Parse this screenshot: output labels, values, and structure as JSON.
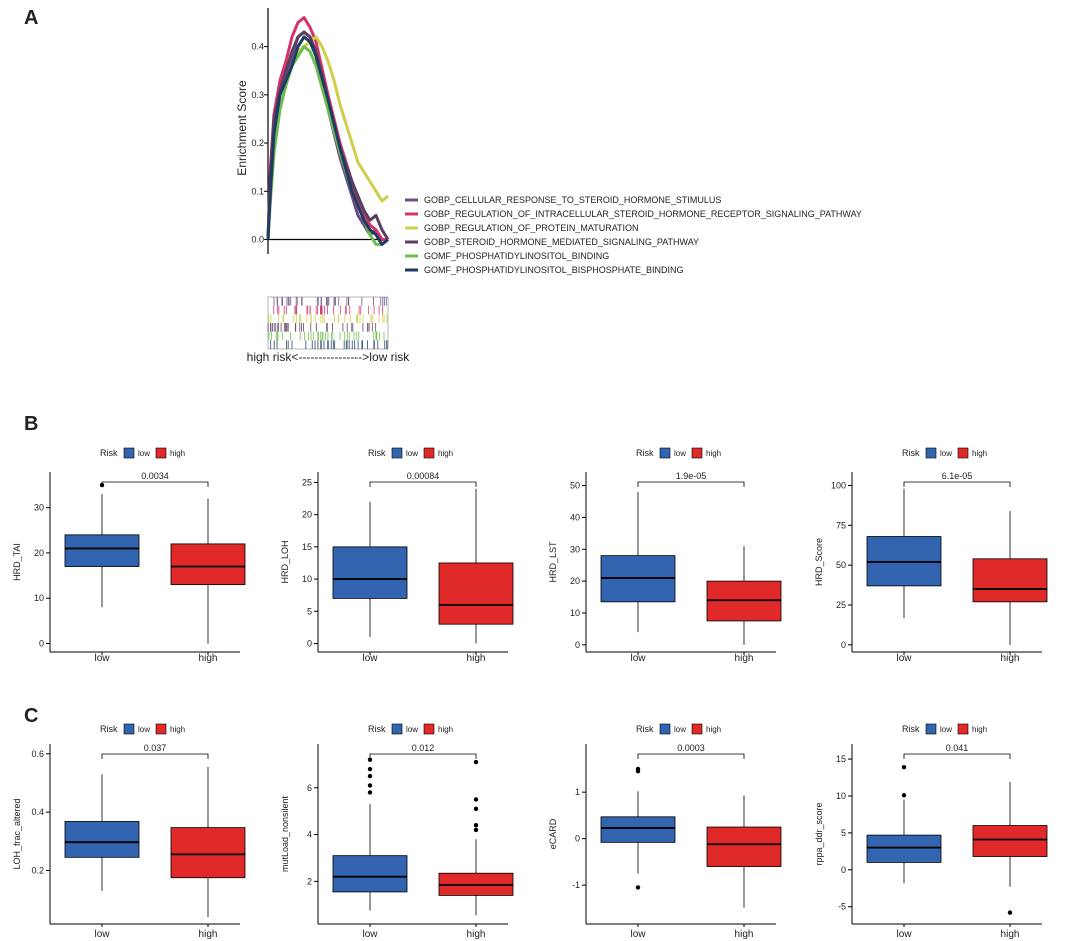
{
  "panels": {
    "a": "A",
    "b": "B",
    "c": "C"
  },
  "colors": {
    "low": "#3264b0",
    "high": "#e02a2a",
    "gsea": [
      "#6b4a86",
      "#d6336c",
      "#cfcf4a",
      "#5a3e5f",
      "#6cbf4c",
      "#1f3b64"
    ]
  },
  "chart_data": [
    {
      "type": "line",
      "title": "",
      "ylabel": "Enrichment Score",
      "yticks": [
        "0.0",
        "0.1",
        "0.2",
        "0.3",
        "0.4"
      ],
      "ylim": [
        -0.03,
        0.48
      ],
      "xlim": [
        0,
        1
      ],
      "axis_note": "high risk<---------------->low risk",
      "series": [
        {
          "name": "GOBP_CELLULAR_RESPONSE_TO_STEROID_HORMONE_STIMULUS",
          "x": [
            0,
            0.02,
            0.05,
            0.1,
            0.15,
            0.2,
            0.25,
            0.3,
            0.35,
            0.4,
            0.5,
            0.6,
            0.7,
            0.75,
            0.8,
            0.85,
            0.9,
            0.95,
            1.0
          ],
          "y": [
            0,
            0.12,
            0.24,
            0.3,
            0.34,
            0.38,
            0.42,
            0.43,
            0.42,
            0.38,
            0.27,
            0.17,
            0.09,
            0.05,
            0.03,
            0.01,
            0.02,
            0.0,
            0.0
          ]
        },
        {
          "name": "GOBP_REGULATION_OF_INTRACELLULAR_STEROID_HORMONE_RECEPTOR_SIGNALING_PATHWAY",
          "x": [
            0,
            0.02,
            0.05,
            0.1,
            0.15,
            0.2,
            0.25,
            0.3,
            0.35,
            0.4,
            0.5,
            0.6,
            0.7,
            0.75,
            0.8,
            0.85,
            0.9,
            0.95,
            1.0
          ],
          "y": [
            0,
            0.15,
            0.26,
            0.33,
            0.37,
            0.42,
            0.45,
            0.46,
            0.44,
            0.41,
            0.3,
            0.2,
            0.12,
            0.08,
            0.05,
            0.03,
            0.02,
            0.0,
            0.0
          ]
        },
        {
          "name": "GOBP_REGULATION_OF_PROTEIN_MATURATION",
          "x": [
            0,
            0.02,
            0.05,
            0.1,
            0.15,
            0.2,
            0.25,
            0.3,
            0.35,
            0.4,
            0.45,
            0.5,
            0.55,
            0.6,
            0.65,
            0.7,
            0.75,
            0.8,
            0.85,
            0.9,
            0.95,
            1.0
          ],
          "y": [
            0,
            0.12,
            0.22,
            0.3,
            0.33,
            0.36,
            0.39,
            0.4,
            0.41,
            0.42,
            0.4,
            0.37,
            0.33,
            0.28,
            0.24,
            0.2,
            0.16,
            0.14,
            0.12,
            0.1,
            0.08,
            0.09
          ]
        },
        {
          "name": "GOBP_STEROID_HORMONE_MEDIATED_SIGNALING_PATHWAY",
          "x": [
            0,
            0.02,
            0.05,
            0.1,
            0.15,
            0.2,
            0.25,
            0.3,
            0.35,
            0.4,
            0.5,
            0.6,
            0.7,
            0.75,
            0.8,
            0.85,
            0.9,
            0.95,
            1.0
          ],
          "y": [
            0,
            0.13,
            0.25,
            0.31,
            0.35,
            0.39,
            0.42,
            0.43,
            0.42,
            0.39,
            0.29,
            0.19,
            0.12,
            0.09,
            0.06,
            0.04,
            0.05,
            0.02,
            0.0
          ]
        },
        {
          "name": "GOMF_PHOSPHATIDYLINOSITOL_BINDING",
          "x": [
            0,
            0.02,
            0.05,
            0.1,
            0.15,
            0.2,
            0.25,
            0.3,
            0.35,
            0.4,
            0.5,
            0.6,
            0.7,
            0.75,
            0.8,
            0.85,
            0.9,
            0.95,
            1.0
          ],
          "y": [
            0,
            0.08,
            0.18,
            0.27,
            0.32,
            0.36,
            0.38,
            0.4,
            0.39,
            0.36,
            0.27,
            0.18,
            0.1,
            0.07,
            0.04,
            0.01,
            -0.01,
            -0.01,
            0.0
          ]
        },
        {
          "name": "GOMF_PHOSPHATIDYLINOSITOL_BISPHOSPHATE_BINDING",
          "x": [
            0,
            0.02,
            0.05,
            0.1,
            0.15,
            0.2,
            0.25,
            0.3,
            0.35,
            0.4,
            0.5,
            0.6,
            0.7,
            0.75,
            0.8,
            0.85,
            0.9,
            0.95,
            1.0
          ],
          "y": [
            0,
            0.1,
            0.22,
            0.3,
            0.33,
            0.36,
            0.4,
            0.42,
            0.41,
            0.38,
            0.29,
            0.19,
            0.1,
            0.07,
            0.04,
            0.02,
            0.01,
            -0.01,
            0.0
          ]
        }
      ]
    },
    {
      "type": "box",
      "panel": "B",
      "ylabel": "HRD_TAI",
      "ylim": [
        -1,
        37
      ],
      "yticks": [
        0,
        10,
        20,
        30
      ],
      "pvalue": "0.0034",
      "categories": [
        "low",
        "high"
      ],
      "boxes": [
        {
          "group": "low",
          "min": 8,
          "q1": 17,
          "median": 21,
          "q3": 24,
          "max": 33,
          "outliers": [
            35
          ]
        },
        {
          "group": "high",
          "min": 0,
          "q1": 13,
          "median": 17,
          "q3": 22,
          "max": 32,
          "outliers": []
        }
      ]
    },
    {
      "type": "box",
      "panel": "B",
      "ylabel": "HRD_LOH",
      "ylim": [
        -0.7,
        26
      ],
      "yticks": [
        0,
        5,
        10,
        15,
        20,
        25
      ],
      "pvalue": "0.00084",
      "categories": [
        "low",
        "high"
      ],
      "boxes": [
        {
          "group": "low",
          "min": 1,
          "q1": 7,
          "median": 10,
          "q3": 15,
          "max": 22,
          "outliers": []
        },
        {
          "group": "high",
          "min": 0,
          "q1": 3,
          "median": 6,
          "q3": 12.5,
          "max": 24,
          "outliers": []
        }
      ]
    },
    {
      "type": "box",
      "panel": "B",
      "ylabel": "HRD_LST",
      "ylim": [
        -1,
        53
      ],
      "yticks": [
        0,
        10,
        20,
        30,
        40,
        50
      ],
      "pvalue": "1.9e-05",
      "categories": [
        "low",
        "high"
      ],
      "boxes": [
        {
          "group": "low",
          "min": 4,
          "q1": 13.5,
          "median": 21,
          "q3": 28,
          "max": 48,
          "outliers": []
        },
        {
          "group": "high",
          "min": 0,
          "q1": 7.5,
          "median": 14,
          "q3": 20,
          "max": 31,
          "outliers": []
        }
      ]
    },
    {
      "type": "box",
      "panel": "B",
      "ylabel": "HRD_Score",
      "ylim": [
        -2,
        106
      ],
      "yticks": [
        0,
        25,
        50,
        75,
        100
      ],
      "pvalue": "6.1e-05",
      "categories": [
        "low",
        "high"
      ],
      "boxes": [
        {
          "group": "low",
          "min": 17,
          "q1": 37,
          "median": 52,
          "q3": 68,
          "max": 98,
          "outliers": []
        },
        {
          "group": "high",
          "min": 0,
          "q1": 27,
          "median": 35,
          "q3": 54,
          "max": 84,
          "outliers": []
        }
      ]
    },
    {
      "type": "box",
      "panel": "C",
      "ylabel": "LOH_frac_altered",
      "ylim": [
        0.03,
        0.62
      ],
      "yticks": [
        0.2,
        0.4,
        0.6
      ],
      "pvalue": "0.037",
      "categories": [
        "low",
        "high"
      ],
      "boxes": [
        {
          "group": "low",
          "min": 0.13,
          "q1": 0.245,
          "median": 0.297,
          "q3": 0.368,
          "max": 0.53,
          "outliers": []
        },
        {
          "group": "high",
          "min": 0.04,
          "q1": 0.175,
          "median": 0.255,
          "q3": 0.347,
          "max": 0.555,
          "outliers": []
        }
      ]
    },
    {
      "type": "box",
      "panel": "C",
      "ylabel": "mutLoad_nonsilent",
      "ylim": [
        0.35,
        7.7
      ],
      "yticks": [
        2,
        4,
        6
      ],
      "pvalue": "0.012",
      "categories": [
        "low",
        "high"
      ],
      "boxes": [
        {
          "group": "low",
          "min": 0.75,
          "q1": 1.55,
          "median": 2.2,
          "q3": 3.1,
          "max": 5.3,
          "outliers": [
            5.8,
            6.1,
            6.5,
            6.8,
            7.2
          ]
        },
        {
          "group": "high",
          "min": 0.55,
          "q1": 1.4,
          "median": 1.85,
          "q3": 2.35,
          "max": 3.8,
          "outliers": [
            4.2,
            4.4,
            5.1,
            5.5,
            7.1
          ]
        }
      ]
    },
    {
      "type": "box",
      "panel": "C",
      "ylabel": "eCARD",
      "ylim": [
        -1.75,
        1.95
      ],
      "yticks": [
        -1,
        0,
        1
      ],
      "pvalue": "0.0003",
      "categories": [
        "low",
        "high"
      ],
      "boxes": [
        {
          "group": "low",
          "min": -0.75,
          "q1": -0.08,
          "median": 0.23,
          "q3": 0.47,
          "max": 1.02,
          "outliers": [
            1.45,
            1.5,
            -1.05
          ]
        },
        {
          "group": "high",
          "min": -1.48,
          "q1": -0.6,
          "median": -0.12,
          "q3": 0.25,
          "max": 0.93,
          "outliers": []
        }
      ]
    },
    {
      "type": "box",
      "panel": "C",
      "ylabel": "rppa_ddr_score",
      "ylim": [
        -6.8,
        16.5
      ],
      "yticks": [
        -5,
        0,
        5,
        10,
        15
      ],
      "pvalue": "0.041",
      "categories": [
        "low",
        "high"
      ],
      "boxes": [
        {
          "group": "low",
          "min": -1.8,
          "q1": 1.0,
          "median": 3.0,
          "q3": 4.7,
          "max": 9.5,
          "outliers": [
            10.1,
            13.9
          ]
        },
        {
          "group": "high",
          "min": -2.3,
          "q1": 1.8,
          "median": 4.1,
          "q3": 6.0,
          "max": 11.9,
          "outliers": [
            -5.8
          ]
        }
      ]
    }
  ],
  "legend": {
    "title": "Risk",
    "low": "low",
    "high": "high"
  }
}
